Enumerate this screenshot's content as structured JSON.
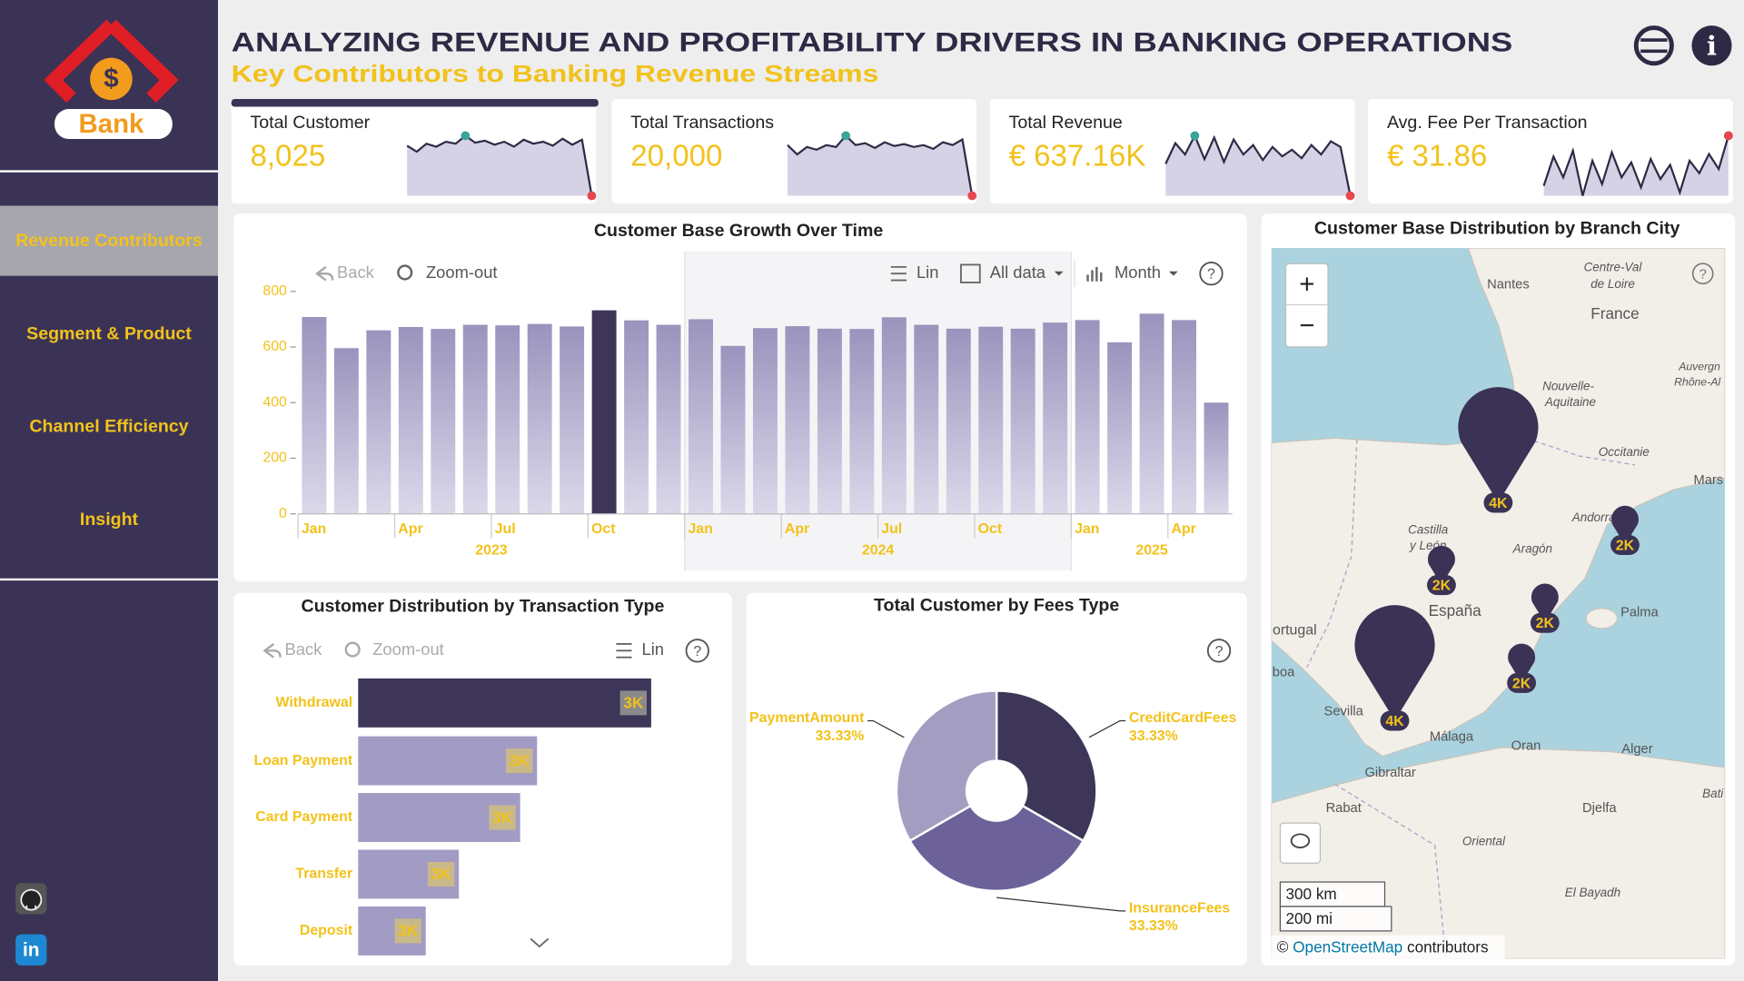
{
  "sidebar": {
    "logo": "Bank",
    "logo_symbol": "$",
    "nav": [
      "Revenue Contributors",
      "Segment & Product",
      "Channel Efficiency",
      "Insight"
    ],
    "active": 0,
    "social": "in"
  },
  "header": {
    "title": "ANALYZING REVENUE AND PROFITABILITY DRIVERS IN BANKING OPERATIONS",
    "subtitle": "Key Contributors to Banking Revenue Streams",
    "info": "i"
  },
  "kpis": [
    {
      "title": "Total Customer",
      "value": "8,025",
      "trend": [
        58,
        52,
        60,
        57,
        62,
        60,
        68,
        61,
        63,
        59,
        62,
        57,
        64,
        60,
        62,
        58,
        65,
        59,
        64,
        8
      ]
    },
    {
      "title": "Total Transactions",
      "value": "20,000",
      "trend": [
        60,
        50,
        58,
        55,
        60,
        58,
        70,
        60,
        62,
        57,
        63,
        59,
        61,
        58,
        60,
        56,
        63,
        60,
        66,
        6
      ]
    },
    {
      "title": "Total Revenue",
      "value": "€ 637.16K",
      "trend": [
        40,
        62,
        50,
        70,
        45,
        68,
        42,
        66,
        50,
        60,
        44,
        58,
        48,
        55,
        46,
        60,
        50,
        64,
        58,
        6
      ]
    },
    {
      "title": "Avg. Fee Per Transaction",
      "value": "€ 31.86",
      "trend": [
        20,
        55,
        30,
        62,
        8,
        50,
        22,
        60,
        30,
        48,
        18,
        52,
        28,
        45,
        12,
        50,
        35,
        58,
        40,
        80
      ]
    }
  ],
  "toolbar": {
    "back": "Back",
    "zoom_out": "Zoom-out",
    "scale": "Lin",
    "range": "All data",
    "granularity": "Month",
    "help": "?"
  },
  "chart_data": [
    {
      "type": "bar",
      "title": "Customer Base Growth Over Time",
      "categories": [
        "Jan",
        null,
        null,
        "Apr",
        null,
        null,
        "Jul",
        null,
        null,
        "Oct",
        null,
        null,
        "Jan",
        null,
        null,
        "Apr",
        null,
        null,
        "Jul",
        null,
        null,
        "Oct",
        null,
        null,
        "Jan",
        null,
        null,
        "Apr",
        null
      ],
      "years": [
        "2023",
        "2024",
        "2025"
      ],
      "values": [
        708,
        596,
        660,
        672,
        665,
        680,
        678,
        683,
        674,
        732,
        696,
        680,
        700,
        604,
        668,
        675,
        666,
        665,
        707,
        680,
        666,
        673,
        666,
        688,
        697,
        617,
        720,
        697,
        400
      ],
      "ylim": [
        0,
        800
      ],
      "yticks": [
        0,
        200,
        400,
        600,
        800
      ],
      "color": "#9a93bd",
      "highlight_index": 9,
      "highlight_color": "#3d3658"
    },
    {
      "type": "hbar",
      "title": "Customer Distribution by Transaction Type",
      "categories": [
        "Withdrawal",
        "Loan Payment",
        "Card Payment",
        "Transfer",
        "Deposit"
      ],
      "values": [
        3480,
        3318,
        3294,
        3207,
        3160
      ],
      "value_labels": [
        "3K",
        "3K",
        "3K",
        "3K",
        "3K"
      ],
      "xlim": [
        3064,
        3544
      ],
      "color": "#a29bc4",
      "highlight_index": 0,
      "highlight_color": "#3d3658"
    },
    {
      "type": "pie",
      "title": "Total Customer by Fees Type",
      "donut": true,
      "categories": [
        "CreditCardFees",
        "InsuranceFees",
        "PaymentAmount"
      ],
      "values": [
        33.33,
        33.33,
        33.33
      ],
      "value_labels": [
        "33.33%",
        "33.33%",
        "33.33%"
      ],
      "colors": [
        "#3d3658",
        "#6c6299",
        "#a39dc2"
      ]
    }
  ],
  "map": {
    "title": "Customer Base Distribution by Branch City",
    "zoom_in": "+",
    "zoom_out": "−",
    "places": [
      "Nantes",
      "Centre-Val",
      "de Loire",
      "France",
      "Nouvelle-",
      "Aquitaine",
      "Occitanie",
      "Auvergn",
      "Rhône-Al",
      "Mars",
      "Castilla",
      "y León",
      "Aragón",
      "España",
      "Palma",
      "ortugal",
      "boa",
      "Sevilla",
      "Málaga",
      "Gibraltar",
      "Oran",
      "Alger",
      "Rabat",
      "Djelfa",
      "Oriental",
      "El Bayadh",
      "Andorra",
      "Bati"
    ],
    "markers": [
      {
        "value": 4000,
        "label": "4K"
      },
      {
        "value": 4000,
        "label": "4K"
      },
      {
        "value": 2000,
        "label": "2K"
      },
      {
        "value": 2000,
        "label": "2K"
      },
      {
        "value": 2000,
        "label": "2K"
      },
      {
        "value": 2000,
        "label": "2K"
      }
    ],
    "scale": [
      "300 km",
      "200 mi"
    ],
    "attribution": [
      "©",
      "OpenStreetMap",
      "contributors"
    ]
  }
}
